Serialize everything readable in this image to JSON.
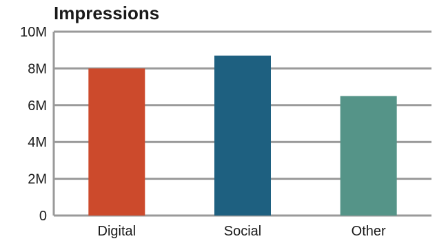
{
  "chart_data": {
    "type": "bar",
    "title": "Impressions",
    "xlabel": "",
    "ylabel": "",
    "categories": [
      "Digital",
      "Social",
      "Other"
    ],
    "values": [
      8000000,
      8700000,
      6500000
    ],
    "bar_colors": [
      "#cc4a2c",
      "#1e6080",
      "#559488"
    ],
    "ylim": [
      0,
      10000000
    ],
    "yticks": [
      0,
      2000000,
      4000000,
      6000000,
      8000000,
      10000000
    ],
    "ytick_labels": [
      "0",
      "2M",
      "4M",
      "6M",
      "8M",
      "10M"
    ],
    "grid": true,
    "legend": "none"
  }
}
